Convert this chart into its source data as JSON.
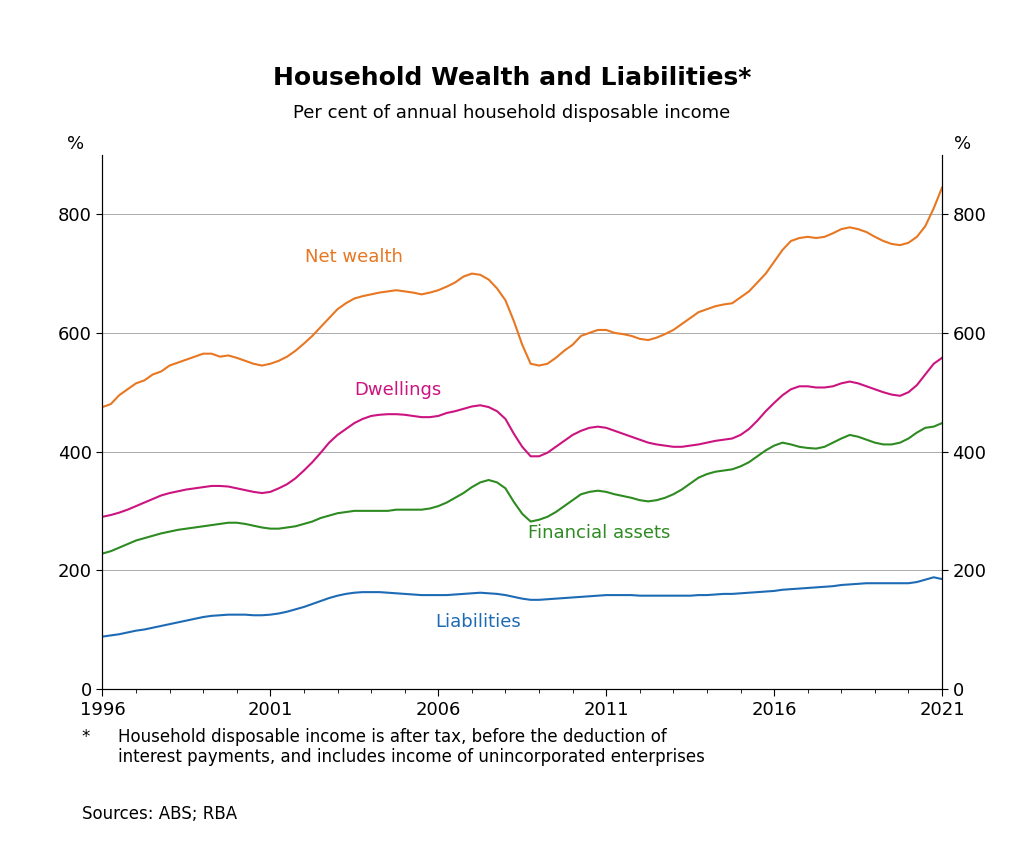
{
  "title": "Household Wealth and Liabilities*",
  "subtitle": "Per cent of annual household disposable income",
  "footnote_star": "*",
  "footnote_text": "Household disposable income is after tax, before the deduction of\ninterest payments, and includes income of unincorporated enterprises",
  "sources": "Sources: ABS; RBA",
  "ylabel_left": "%",
  "ylabel_right": "%",
  "xlim": [
    1996,
    2021
  ],
  "ylim": [
    0,
    900
  ],
  "yticks": [
    0,
    200,
    400,
    600,
    800
  ],
  "xticks": [
    1996,
    2001,
    2006,
    2011,
    2016,
    2021
  ],
  "net_wealth_color": "#E87722",
  "dwellings_color": "#CC1480",
  "financial_assets_color": "#2E8B22",
  "liabilities_color": "#1E6BB5",
  "net_wealth_label": "Net wealth",
  "dwellings_label": "Dwellings",
  "financial_assets_label": "Financial assets",
  "liabilities_label": "Liabilities",
  "years": [
    1996.0,
    1996.25,
    1996.5,
    1996.75,
    1997.0,
    1997.25,
    1997.5,
    1997.75,
    1998.0,
    1998.25,
    1998.5,
    1998.75,
    1999.0,
    1999.25,
    1999.5,
    1999.75,
    2000.0,
    2000.25,
    2000.5,
    2000.75,
    2001.0,
    2001.25,
    2001.5,
    2001.75,
    2002.0,
    2002.25,
    2002.5,
    2002.75,
    2003.0,
    2003.25,
    2003.5,
    2003.75,
    2004.0,
    2004.25,
    2004.5,
    2004.75,
    2005.0,
    2005.25,
    2005.5,
    2005.75,
    2006.0,
    2006.25,
    2006.5,
    2006.75,
    2007.0,
    2007.25,
    2007.5,
    2007.75,
    2008.0,
    2008.25,
    2008.5,
    2008.75,
    2009.0,
    2009.25,
    2009.5,
    2009.75,
    2010.0,
    2010.25,
    2010.5,
    2010.75,
    2011.0,
    2011.25,
    2011.5,
    2011.75,
    2012.0,
    2012.25,
    2012.5,
    2012.75,
    2013.0,
    2013.25,
    2013.5,
    2013.75,
    2014.0,
    2014.25,
    2014.5,
    2014.75,
    2015.0,
    2015.25,
    2015.5,
    2015.75,
    2016.0,
    2016.25,
    2016.5,
    2016.75,
    2017.0,
    2017.25,
    2017.5,
    2017.75,
    2018.0,
    2018.25,
    2018.5,
    2018.75,
    2019.0,
    2019.25,
    2019.5,
    2019.75,
    2020.0,
    2020.25,
    2020.5,
    2020.75,
    2021.0
  ],
  "net_wealth": [
    475,
    480,
    495,
    505,
    515,
    520,
    530,
    535,
    545,
    550,
    555,
    560,
    565,
    565,
    560,
    562,
    558,
    553,
    548,
    545,
    548,
    553,
    560,
    570,
    582,
    595,
    610,
    625,
    640,
    650,
    658,
    662,
    665,
    668,
    670,
    672,
    670,
    668,
    665,
    668,
    672,
    678,
    685,
    695,
    700,
    698,
    690,
    675,
    655,
    620,
    580,
    548,
    545,
    548,
    558,
    570,
    580,
    595,
    600,
    605,
    605,
    600,
    598,
    595,
    590,
    588,
    592,
    598,
    605,
    615,
    625,
    635,
    640,
    645,
    648,
    650,
    660,
    670,
    685,
    700,
    720,
    740,
    755,
    760,
    762,
    760,
    762,
    768,
    775,
    778,
    775,
    770,
    762,
    755,
    750,
    748,
    752,
    762,
    780,
    810,
    845
  ],
  "dwellings": [
    290,
    293,
    297,
    302,
    308,
    314,
    320,
    326,
    330,
    333,
    336,
    338,
    340,
    342,
    342,
    341,
    338,
    335,
    332,
    330,
    332,
    338,
    345,
    355,
    368,
    382,
    398,
    415,
    428,
    438,
    448,
    455,
    460,
    462,
    463,
    463,
    462,
    460,
    458,
    458,
    460,
    465,
    468,
    472,
    476,
    478,
    475,
    468,
    455,
    430,
    408,
    392,
    392,
    398,
    408,
    418,
    428,
    435,
    440,
    442,
    440,
    435,
    430,
    425,
    420,
    415,
    412,
    410,
    408,
    408,
    410,
    412,
    415,
    418,
    420,
    422,
    428,
    438,
    452,
    468,
    482,
    495,
    505,
    510,
    510,
    508,
    508,
    510,
    515,
    518,
    515,
    510,
    505,
    500,
    496,
    494,
    500,
    512,
    530,
    548,
    558
  ],
  "financial_assets": [
    228,
    232,
    238,
    244,
    250,
    254,
    258,
    262,
    265,
    268,
    270,
    272,
    274,
    276,
    278,
    280,
    280,
    278,
    275,
    272,
    270,
    270,
    272,
    274,
    278,
    282,
    288,
    292,
    296,
    298,
    300,
    300,
    300,
    300,
    300,
    302,
    302,
    302,
    302,
    304,
    308,
    314,
    322,
    330,
    340,
    348,
    352,
    348,
    338,
    315,
    295,
    282,
    285,
    290,
    298,
    308,
    318,
    328,
    332,
    334,
    332,
    328,
    325,
    322,
    318,
    316,
    318,
    322,
    328,
    336,
    346,
    356,
    362,
    366,
    368,
    370,
    375,
    382,
    392,
    402,
    410,
    415,
    412,
    408,
    406,
    405,
    408,
    415,
    422,
    428,
    425,
    420,
    415,
    412,
    412,
    415,
    422,
    432,
    440,
    442,
    448
  ],
  "liabilities": [
    88,
    90,
    92,
    95,
    98,
    100,
    103,
    106,
    109,
    112,
    115,
    118,
    121,
    123,
    124,
    125,
    125,
    125,
    124,
    124,
    125,
    127,
    130,
    134,
    138,
    143,
    148,
    153,
    157,
    160,
    162,
    163,
    163,
    163,
    162,
    161,
    160,
    159,
    158,
    158,
    158,
    158,
    159,
    160,
    161,
    162,
    161,
    160,
    158,
    155,
    152,
    150,
    150,
    151,
    152,
    153,
    154,
    155,
    156,
    157,
    158,
    158,
    158,
    158,
    157,
    157,
    157,
    157,
    157,
    157,
    157,
    158,
    158,
    159,
    160,
    160,
    161,
    162,
    163,
    164,
    165,
    167,
    168,
    169,
    170,
    171,
    172,
    173,
    175,
    176,
    177,
    178,
    178,
    178,
    178,
    178,
    178,
    180,
    184,
    188,
    185
  ]
}
